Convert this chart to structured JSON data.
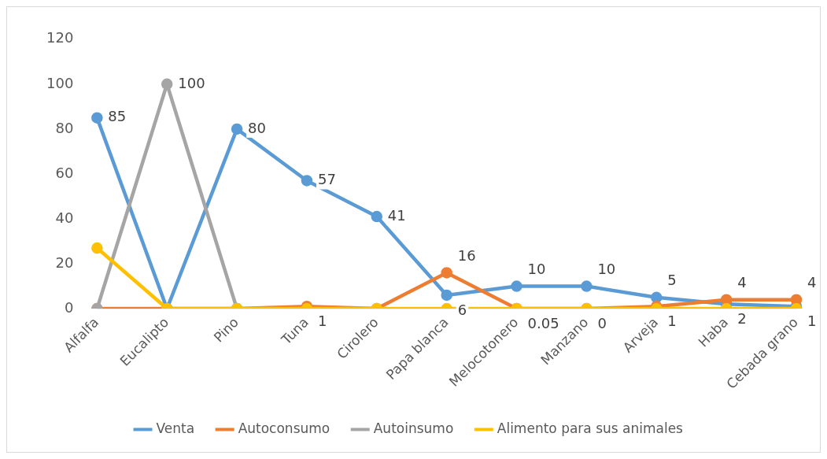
{
  "chart_data": {
    "type": "line",
    "categories": [
      "Alfalfa",
      "Eucalipto",
      "Pino",
      "Tuna",
      "Cirolero",
      "Papa blanca",
      "Melocotonero",
      "Manzano",
      "Arveja",
      "Haba",
      "Cebada grano"
    ],
    "series": [
      {
        "name": "Venta",
        "color": "#5b9bd5",
        "values": [
          85,
          0,
          80,
          57,
          41,
          6,
          10,
          10,
          5,
          2,
          1
        ],
        "value_labels": [
          "85",
          null,
          "80",
          "57",
          "41",
          "6",
          "10",
          "10",
          "5",
          "2",
          "1"
        ]
      },
      {
        "name": "Autoconsumo",
        "color": "#ed7d31",
        "values": [
          0,
          0,
          0,
          1,
          0,
          16,
          0.05,
          0,
          1,
          4,
          4
        ],
        "value_labels": [
          null,
          null,
          null,
          "1",
          null,
          "16",
          "0.05",
          "0",
          "1",
          "4",
          "4"
        ]
      },
      {
        "name": "Autoinsumo",
        "color": "#a5a5a5",
        "values": [
          0,
          100,
          0,
          null,
          null,
          null,
          null,
          null,
          null,
          null,
          null
        ],
        "value_labels": [
          null,
          "100",
          null,
          null,
          null,
          null,
          null,
          null,
          null,
          null,
          null
        ]
      },
      {
        "name": "Alimento para sus animales",
        "color": "#ffc000",
        "values": [
          27,
          0,
          0,
          0,
          0,
          0,
          0,
          0,
          0,
          0,
          0
        ]
      }
    ],
    "ylim": [
      0,
      120
    ],
    "yticks": [
      0,
      20,
      40,
      60,
      80,
      100,
      120
    ],
    "grid": false,
    "legend": "bottom",
    "marker": "circle",
    "line_style": "solid"
  }
}
